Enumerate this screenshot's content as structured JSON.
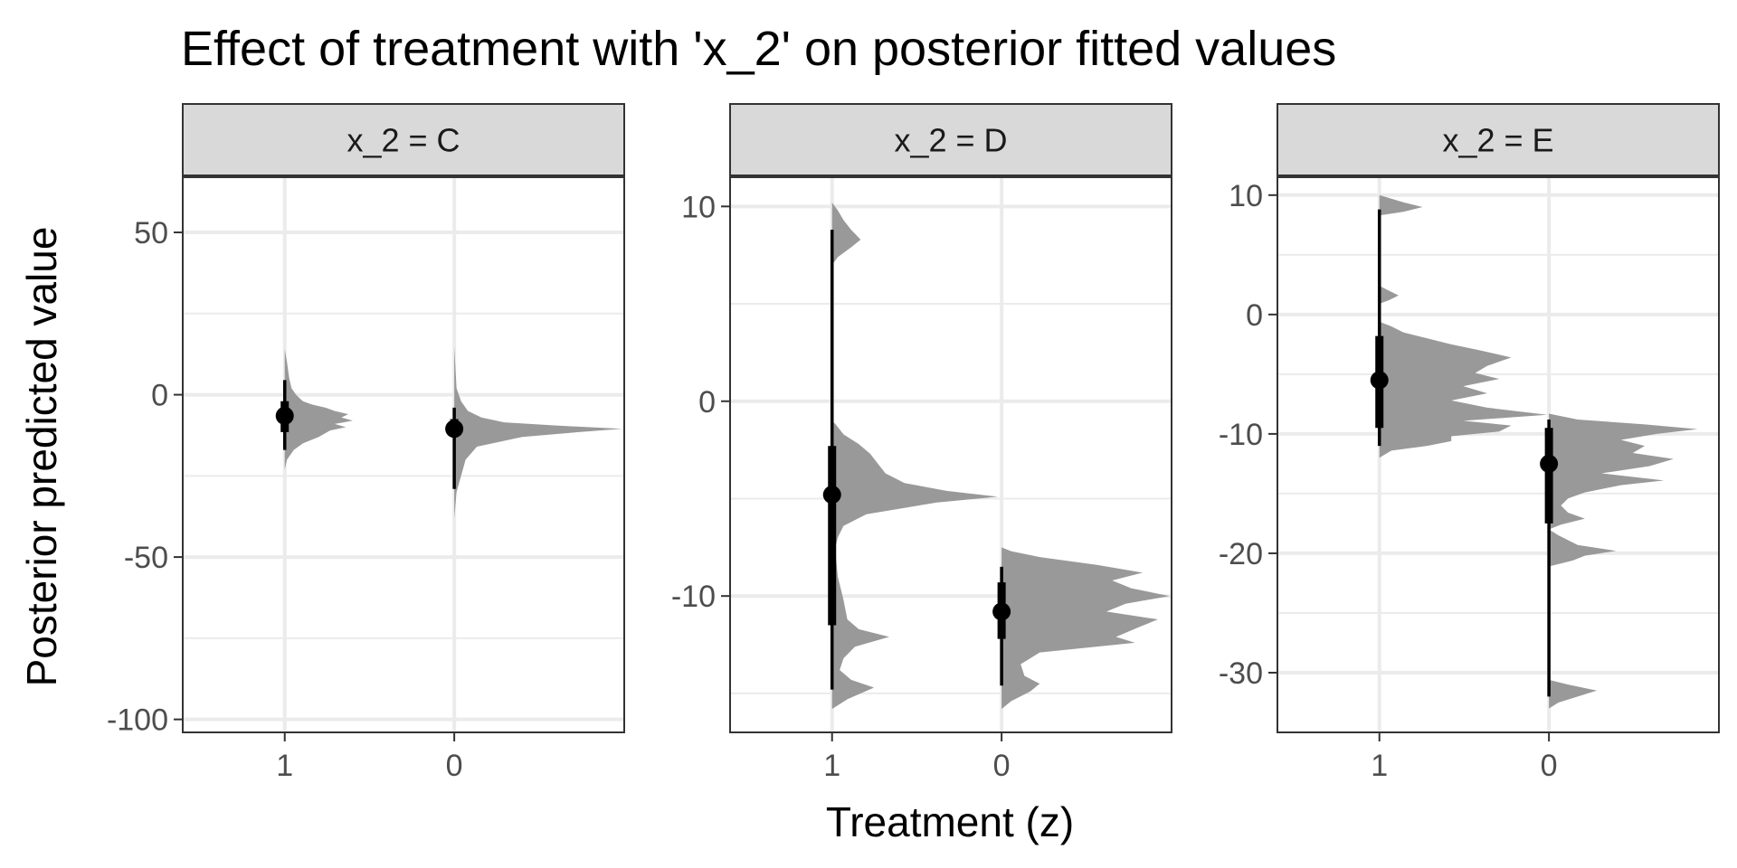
{
  "chart_data": {
    "type": "half-eye",
    "title": "Effect of treatment with 'x_2' on posterior fitted values",
    "xlabel": "Treatment (z)",
    "ylabel": "Posterior predicted value",
    "categories": [
      "1",
      "0"
    ],
    "grid": true,
    "colors": {
      "density": "#999999",
      "interval": "#000000",
      "panel_border": "#333333",
      "strip_fill": "#d9d9d9",
      "grid_major": "#ebebeb"
    },
    "panels": [
      {
        "strip": "x_2 = C",
        "ylim": [
          -104,
          67
        ],
        "yticks": [
          50,
          0,
          -50,
          -100
        ],
        "ytick_labels": [
          "50",
          "0",
          "-50",
          "-100"
        ],
        "series": [
          {
            "x": "1",
            "median": -6.5,
            "interval_66": [
              -11.5,
              -2
            ],
            "interval_95": [
              -17,
              4.5
            ],
            "density_range": [
              -23,
              14
            ],
            "density_max": 0.3,
            "density": [
              [
                -23,
                0
              ],
              [
                -20,
                0.01
              ],
              [
                -17,
                0.04
              ],
              [
                -15,
                0.08
              ],
              [
                -13,
                0.15
              ],
              [
                -11,
                0.2
              ],
              [
                -10,
                0.27
              ],
              [
                -9,
                0.22
              ],
              [
                -8,
                0.3
              ],
              [
                -7,
                0.25
              ],
              [
                -6,
                0.28
              ],
              [
                -5,
                0.22
              ],
              [
                -4,
                0.18
              ],
              [
                -3,
                0.12
              ],
              [
                -2,
                0.08
              ],
              [
                0,
                0.05
              ],
              [
                2,
                0.03
              ],
              [
                5,
                0.02
              ],
              [
                10,
                0.01
              ],
              [
                14,
                0
              ]
            ]
          },
          {
            "x": "0",
            "median": -10.5,
            "interval_66": [
              -13,
              -7.5
            ],
            "interval_95": [
              -29,
              -4
            ],
            "density_range": [
              -38,
              15
            ],
            "density_max": 0.74,
            "density": [
              [
                -38,
                0
              ],
              [
                -30,
                0.01
              ],
              [
                -25,
                0.03
              ],
              [
                -20,
                0.05
              ],
              [
                -16,
                0.1
              ],
              [
                -13,
                0.3
              ],
              [
                -11.5,
                0.55
              ],
              [
                -10.5,
                0.74
              ],
              [
                -9.5,
                0.45
              ],
              [
                -8.5,
                0.22
              ],
              [
                -7,
                0.12
              ],
              [
                -5,
                0.06
              ],
              [
                -2,
                0.03
              ],
              [
                2,
                0.01
              ],
              [
                15,
                0
              ]
            ]
          }
        ]
      },
      {
        "strip": "x_2 = D",
        "ylim": [
          -17,
          11.5
        ],
        "yticks": [
          10,
          0,
          -10
        ],
        "ytick_labels": [
          "10",
          "0",
          "-10"
        ],
        "series": [
          {
            "x": "1",
            "median": -4.8,
            "interval_66": [
              -11.5,
              -2.3
            ],
            "interval_95": [
              -14.8,
              8.8
            ],
            "density_range": [
              -15.8,
              10.2
            ],
            "density_max": 0.87,
            "density": [
              [
                -15.8,
                0
              ],
              [
                -15.3,
                0.08
              ],
              [
                -14.7,
                0.22
              ],
              [
                -14.3,
                0.1
              ],
              [
                -13.8,
                0.04
              ],
              [
                -13.2,
                0.06
              ],
              [
                -12.6,
                0.12
              ],
              [
                -12.1,
                0.3
              ],
              [
                -11.7,
                0.14
              ],
              [
                -11.2,
                0.08
              ],
              [
                -10.2,
                0.06
              ],
              [
                -9,
                0.03
              ],
              [
                -8,
                0.02
              ],
              [
                -7.6,
                0
              ],
              [
                -7.4,
                0.02
              ],
              [
                -7,
                0.03
              ],
              [
                -6.4,
                0.06
              ],
              [
                -5.8,
                0.18
              ],
              [
                -5.2,
                0.55
              ],
              [
                -4.9,
                0.87
              ],
              [
                -4.6,
                0.6
              ],
              [
                -4.2,
                0.38
              ],
              [
                -3.7,
                0.28
              ],
              [
                -3.2,
                0.24
              ],
              [
                -2.7,
                0.2
              ],
              [
                -2.2,
                0.14
              ],
              [
                -1.7,
                0.06
              ],
              [
                -1.2,
                0.02
              ],
              [
                -1,
                0
              ],
              [
                7,
                0
              ],
              [
                7.4,
                0.03
              ],
              [
                7.9,
                0.1
              ],
              [
                8.3,
                0.15
              ],
              [
                8.8,
                0.1
              ],
              [
                9.3,
                0.06
              ],
              [
                9.8,
                0.03
              ],
              [
                10.2,
                0
              ]
            ]
          },
          {
            "x": "0",
            "median": -10.8,
            "interval_66": [
              -12.2,
              -9.3
            ],
            "interval_95": [
              -14.6,
              -8.5
            ],
            "density_range": [
              -15.8,
              -7.5
            ],
            "density_max": 0.88,
            "density": [
              [
                -15.8,
                0
              ],
              [
                -15.4,
                0.05
              ],
              [
                -14.9,
                0.15
              ],
              [
                -14.5,
                0.2
              ],
              [
                -14.1,
                0.12
              ],
              [
                -13.5,
                0.1
              ],
              [
                -12.9,
                0.2
              ],
              [
                -12.4,
                0.7
              ],
              [
                -12.1,
                0.6
              ],
              [
                -11.6,
                0.72
              ],
              [
                -11.2,
                0.82
              ],
              [
                -10.8,
                0.55
              ],
              [
                -10.4,
                0.65
              ],
              [
                -10,
                0.88
              ],
              [
                -9.6,
                0.68
              ],
              [
                -9.2,
                0.58
              ],
              [
                -8.8,
                0.74
              ],
              [
                -8.4,
                0.5
              ],
              [
                -8,
                0.2
              ],
              [
                -7.7,
                0.05
              ],
              [
                -7.5,
                0
              ]
            ]
          }
        ]
      },
      {
        "strip": "x_2 = E",
        "ylim": [
          -35,
          11.5
        ],
        "yticks": [
          10,
          0,
          -10,
          -20,
          -30
        ],
        "ytick_labels": [
          "10",
          "0",
          "-10",
          "-20",
          "-30"
        ],
        "series": [
          {
            "x": "1",
            "median": -5.5,
            "interval_66": [
              -9.5,
              -1.8
            ],
            "interval_95": [
              -11,
              8.8
            ],
            "density_range": [
              -12,
              10
            ],
            "density_max": 0.7,
            "density": [
              [
                -12,
                0
              ],
              [
                -11.4,
                0.05
              ],
              [
                -11,
                0.2
              ],
              [
                -10.6,
                0.3
              ],
              [
                -10.2,
                0.3
              ],
              [
                -9.8,
                0.5
              ],
              [
                -9.3,
                0.55
              ],
              [
                -8.9,
                0.35
              ],
              [
                -8.4,
                0.7
              ],
              [
                -7.8,
                0.45
              ],
              [
                -7.2,
                0.3
              ],
              [
                -6.6,
                0.45
              ],
              [
                -6,
                0.35
              ],
              [
                -5.4,
                0.5
              ],
              [
                -4.9,
                0.4
              ],
              [
                -4.3,
                0.45
              ],
              [
                -3.6,
                0.55
              ],
              [
                -3,
                0.42
              ],
              [
                -2.5,
                0.3
              ],
              [
                -2,
                0.2
              ],
              [
                -1.5,
                0.1
              ],
              [
                -1,
                0.05
              ],
              [
                -0.6,
                0
              ],
              [
                0.9,
                0
              ],
              [
                1.2,
                0.04
              ],
              [
                1.6,
                0.08
              ],
              [
                2,
                0.04
              ],
              [
                2.4,
                0
              ],
              [
                8.3,
                0
              ],
              [
                8.6,
                0.1
              ],
              [
                9,
                0.18
              ],
              [
                9.4,
                0.1
              ],
              [
                10,
                0
              ]
            ]
          },
          {
            "x": "0",
            "median": -12.5,
            "interval_66": [
              -17.5,
              -9.5
            ],
            "interval_95": [
              -32,
              -8.8
            ],
            "density_range": [
              -33,
              -8.3
            ],
            "density_max": 0.62,
            "density": [
              [
                -33,
                0
              ],
              [
                -32.5,
                0.04
              ],
              [
                -32,
                0.12
              ],
              [
                -31.5,
                0.2
              ],
              [
                -31,
                0.08
              ],
              [
                -30.6,
                0
              ],
              [
                -21.1,
                0
              ],
              [
                -20.6,
                0.1
              ],
              [
                -20.2,
                0.15
              ],
              [
                -19.8,
                0.28
              ],
              [
                -19.3,
                0.12
              ],
              [
                -18.5,
                0.04
              ],
              [
                -18,
                0
              ],
              [
                -17.6,
                0.05
              ],
              [
                -17.1,
                0.15
              ],
              [
                -16.6,
                0.08
              ],
              [
                -16,
                0.05
              ],
              [
                -15.4,
                0.08
              ],
              [
                -14.9,
                0.15
              ],
              [
                -14.3,
                0.3
              ],
              [
                -13.9,
                0.48
              ],
              [
                -13.3,
                0.22
              ],
              [
                -12.7,
                0.42
              ],
              [
                -12.1,
                0.52
              ],
              [
                -11.6,
                0.35
              ],
              [
                -11,
                0.4
              ],
              [
                -10.5,
                0.3
              ],
              [
                -10,
                0.45
              ],
              [
                -9.6,
                0.62
              ],
              [
                -9.2,
                0.4
              ],
              [
                -8.8,
                0.12
              ],
              [
                -8.3,
                0
              ]
            ]
          }
        ]
      }
    ]
  }
}
